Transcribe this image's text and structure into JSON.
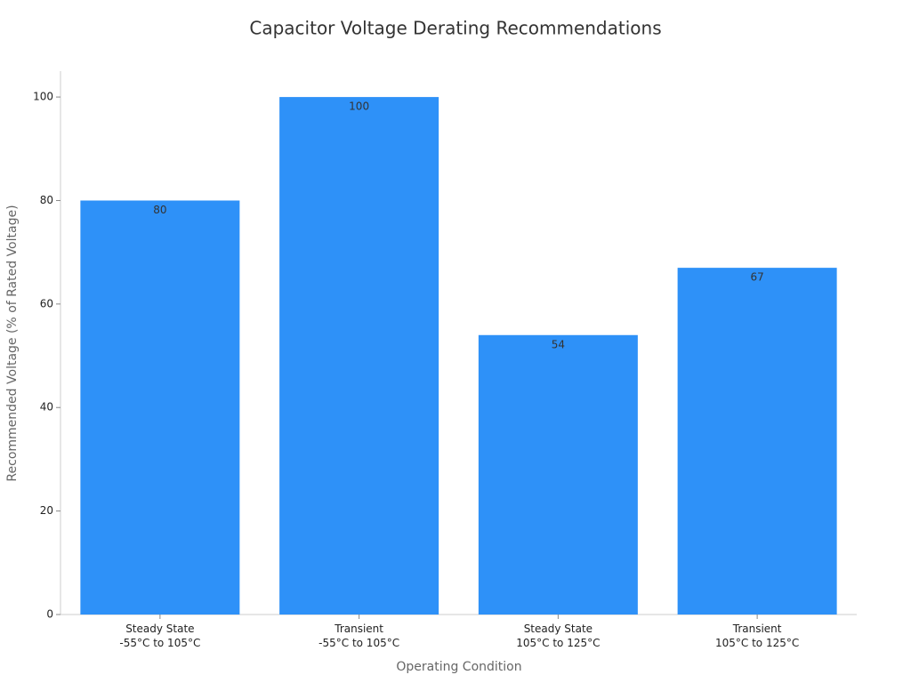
{
  "chart_data": {
    "type": "bar",
    "title": "Capacitor Voltage Derating Recommendations",
    "x_label": "Operating Condition",
    "y_label": "Recommended Voltage (% of Rated Voltage)",
    "categories": [
      "Steady State\n-55°C to 105°C",
      "Transient\n-55°C to 105°C",
      "Steady State\n105°C to 125°C",
      "Transient\n105°C to 125°C"
    ],
    "values": [
      80,
      100,
      54,
      67
    ],
    "color": "#2e91f8",
    "ylim": [
      0,
      105
    ],
    "yticks": [
      0,
      20,
      40,
      60,
      80,
      100
    ],
    "grid": false
  }
}
